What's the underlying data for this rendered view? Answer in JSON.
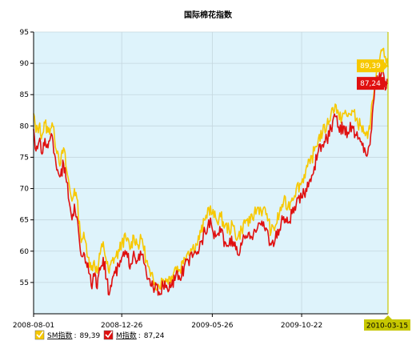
{
  "chart_data": {
    "type": "line",
    "title": "国际棉花指数",
    "ylim": [
      50,
      95
    ],
    "y_ticks": [
      55,
      60,
      65,
      70,
      75,
      80,
      85,
      90,
      95
    ],
    "x_range": [
      "2008-08-01",
      "2010-03-15"
    ],
    "x_ticks": [
      "2008-08-01",
      "2008-12-26",
      "2009-05-26",
      "2009-10-22"
    ],
    "cursor_date": "2010-03-15",
    "grid": true,
    "legend_position": "bottom-left",
    "series": [
      {
        "name": "SM指数",
        "color": "#f7c800",
        "last_value": "89,39",
        "points": [
          [
            "2008-08-01",
            82.0
          ],
          [
            "2008-08-05",
            79.0
          ],
          [
            "2008-08-10",
            80.0
          ],
          [
            "2008-08-15",
            78.5
          ],
          [
            "2008-08-20",
            80.5
          ],
          [
            "2008-08-25",
            79.0
          ],
          [
            "2008-09-01",
            80.5
          ],
          [
            "2008-09-05",
            78.0
          ],
          [
            "2008-09-10",
            76.0
          ],
          [
            "2008-09-15",
            74.0
          ],
          [
            "2008-09-20",
            76.5
          ],
          [
            "2008-09-25",
            73.0
          ],
          [
            "2008-10-01",
            69.5
          ],
          [
            "2008-10-04",
            68.0
          ],
          [
            "2008-10-08",
            70.0
          ],
          [
            "2008-10-12",
            68.5
          ],
          [
            "2008-10-18",
            62.5
          ],
          [
            "2008-10-25",
            62.0
          ],
          [
            "2008-11-01",
            59.0
          ],
          [
            "2008-11-05",
            57.0
          ],
          [
            "2008-11-10",
            58.5
          ],
          [
            "2008-11-15",
            56.5
          ],
          [
            "2008-11-20",
            59.5
          ],
          [
            "2008-11-25",
            61.5
          ],
          [
            "2008-12-01",
            58.0
          ],
          [
            "2008-12-05",
            56.5
          ],
          [
            "2008-12-10",
            58.5
          ],
          [
            "2008-12-15",
            59.0
          ],
          [
            "2008-12-22",
            60.0
          ],
          [
            "2008-12-26",
            61.5
          ],
          [
            "2009-01-02",
            62.0
          ],
          [
            "2009-01-10",
            60.5
          ],
          [
            "2009-01-15",
            62.5
          ],
          [
            "2009-01-22",
            61.0
          ],
          [
            "2009-01-29",
            62.0
          ],
          [
            "2009-02-05",
            58.5
          ],
          [
            "2009-02-12",
            56.0
          ],
          [
            "2009-02-19",
            55.0
          ],
          [
            "2009-02-26",
            54.5
          ],
          [
            "2009-03-05",
            55.5
          ],
          [
            "2009-03-12",
            55.5
          ],
          [
            "2009-03-19",
            56.0
          ],
          [
            "2009-03-26",
            57.5
          ],
          [
            "2009-04-02",
            57.0
          ],
          [
            "2009-04-09",
            59.0
          ],
          [
            "2009-04-16",
            60.0
          ],
          [
            "2009-04-23",
            60.5
          ],
          [
            "2009-04-30",
            61.0
          ],
          [
            "2009-05-07",
            63.0
          ],
          [
            "2009-05-14",
            65.0
          ],
          [
            "2009-05-20",
            67.0
          ],
          [
            "2009-05-26",
            66.0
          ],
          [
            "2009-06-02",
            65.0
          ],
          [
            "2009-06-09",
            65.5
          ],
          [
            "2009-06-16",
            64.0
          ],
          [
            "2009-06-23",
            63.5
          ],
          [
            "2009-06-30",
            64.0
          ],
          [
            "2009-07-07",
            62.0
          ],
          [
            "2009-07-14",
            63.5
          ],
          [
            "2009-07-21",
            65.0
          ],
          [
            "2009-07-28",
            64.5
          ],
          [
            "2009-08-04",
            66.0
          ],
          [
            "2009-08-11",
            67.0
          ],
          [
            "2009-08-18",
            66.5
          ],
          [
            "2009-08-25",
            66.0
          ],
          [
            "2009-09-01",
            63.0
          ],
          [
            "2009-09-08",
            64.0
          ],
          [
            "2009-09-15",
            66.0
          ],
          [
            "2009-09-22",
            68.0
          ],
          [
            "2009-09-29",
            67.0
          ],
          [
            "2009-10-06",
            68.5
          ],
          [
            "2009-10-13",
            70.0
          ],
          [
            "2009-10-22",
            71.0
          ],
          [
            "2009-10-29",
            73.0
          ],
          [
            "2009-11-05",
            74.0
          ],
          [
            "2009-11-12",
            76.0
          ],
          [
            "2009-11-19",
            78.0
          ],
          [
            "2009-11-26",
            79.0
          ],
          [
            "2009-12-03",
            80.0
          ],
          [
            "2009-12-10",
            82.0
          ],
          [
            "2009-12-17",
            83.5
          ],
          [
            "2009-12-24",
            81.0
          ],
          [
            "2009-12-31",
            82.0
          ],
          [
            "2010-01-07",
            81.5
          ],
          [
            "2010-01-14",
            82.5
          ],
          [
            "2010-01-21",
            81.0
          ],
          [
            "2010-01-28",
            80.0
          ],
          [
            "2010-02-04",
            79.0
          ],
          [
            "2010-02-09",
            78.0
          ],
          [
            "2010-02-13",
            79.5
          ],
          [
            "2010-02-17",
            84.0
          ],
          [
            "2010-02-21",
            87.0
          ],
          [
            "2010-02-25",
            89.0
          ],
          [
            "2010-03-01",
            90.5
          ],
          [
            "2010-03-05",
            92.0
          ],
          [
            "2010-03-09",
            91.0
          ],
          [
            "2010-03-12",
            90.0
          ],
          [
            "2010-03-15",
            89.39
          ]
        ]
      },
      {
        "name": "M指数",
        "color": "#e01010",
        "last_value": "87,24",
        "points": [
          [
            "2008-08-01",
            79.5
          ],
          [
            "2008-08-05",
            76.0
          ],
          [
            "2008-08-10",
            77.5
          ],
          [
            "2008-08-15",
            75.5
          ],
          [
            "2008-08-20",
            78.0
          ],
          [
            "2008-08-25",
            76.5
          ],
          [
            "2008-09-01",
            78.5
          ],
          [
            "2008-09-05",
            75.5
          ],
          [
            "2008-09-10",
            73.0
          ],
          [
            "2008-09-15",
            72.0
          ],
          [
            "2008-09-20",
            74.0
          ],
          [
            "2008-09-25",
            71.0
          ],
          [
            "2008-10-01",
            67.0
          ],
          [
            "2008-10-04",
            65.0
          ],
          [
            "2008-10-08",
            67.5
          ],
          [
            "2008-10-12",
            65.5
          ],
          [
            "2008-10-18",
            60.0
          ],
          [
            "2008-10-25",
            59.5
          ],
          [
            "2008-11-01",
            56.5
          ],
          [
            "2008-11-05",
            54.5
          ],
          [
            "2008-11-10",
            56.0
          ],
          [
            "2008-11-15",
            54.0
          ],
          [
            "2008-11-20",
            57.0
          ],
          [
            "2008-11-25",
            59.0
          ],
          [
            "2008-12-01",
            55.5
          ],
          [
            "2008-12-05",
            53.0
          ],
          [
            "2008-12-10",
            55.5
          ],
          [
            "2008-12-15",
            56.5
          ],
          [
            "2008-12-22",
            57.5
          ],
          [
            "2008-12-26",
            59.0
          ],
          [
            "2009-01-02",
            59.5
          ],
          [
            "2009-01-10",
            58.0
          ],
          [
            "2009-01-15",
            60.0
          ],
          [
            "2009-01-22",
            58.5
          ],
          [
            "2009-01-29",
            59.5
          ],
          [
            "2009-02-05",
            56.5
          ],
          [
            "2009-02-12",
            54.5
          ],
          [
            "2009-02-19",
            54.0
          ],
          [
            "2009-02-26",
            53.5
          ],
          [
            "2009-03-05",
            54.5
          ],
          [
            "2009-03-12",
            54.0
          ],
          [
            "2009-03-19",
            54.5
          ],
          [
            "2009-03-26",
            56.0
          ],
          [
            "2009-04-02",
            55.5
          ],
          [
            "2009-04-09",
            57.5
          ],
          [
            "2009-04-16",
            58.5
          ],
          [
            "2009-04-23",
            59.0
          ],
          [
            "2009-04-30",
            59.5
          ],
          [
            "2009-05-07",
            61.5
          ],
          [
            "2009-05-14",
            63.0
          ],
          [
            "2009-05-20",
            65.0
          ],
          [
            "2009-05-26",
            63.5
          ],
          [
            "2009-06-02",
            62.5
          ],
          [
            "2009-06-09",
            63.0
          ],
          [
            "2009-06-16",
            61.5
          ],
          [
            "2009-06-23",
            61.0
          ],
          [
            "2009-06-30",
            61.5
          ],
          [
            "2009-07-07",
            59.5
          ],
          [
            "2009-07-14",
            61.0
          ],
          [
            "2009-07-21",
            62.5
          ],
          [
            "2009-07-28",
            62.0
          ],
          [
            "2009-08-04",
            63.5
          ],
          [
            "2009-08-11",
            64.5
          ],
          [
            "2009-08-18",
            64.0
          ],
          [
            "2009-08-25",
            63.5
          ],
          [
            "2009-09-01",
            61.0
          ],
          [
            "2009-09-08",
            62.0
          ],
          [
            "2009-09-15",
            63.5
          ],
          [
            "2009-09-22",
            65.5
          ],
          [
            "2009-09-29",
            64.5
          ],
          [
            "2009-10-06",
            66.0
          ],
          [
            "2009-10-13",
            67.5
          ],
          [
            "2009-10-22",
            68.5
          ],
          [
            "2009-10-29",
            70.0
          ],
          [
            "2009-11-05",
            71.5
          ],
          [
            "2009-11-12",
            73.5
          ],
          [
            "2009-11-19",
            76.0
          ],
          [
            "2009-11-26",
            77.0
          ],
          [
            "2009-12-03",
            78.0
          ],
          [
            "2009-12-10",
            79.5
          ],
          [
            "2009-12-17",
            81.5
          ],
          [
            "2009-12-24",
            79.0
          ],
          [
            "2009-12-31",
            80.0
          ],
          [
            "2010-01-07",
            79.0
          ],
          [
            "2010-01-14",
            80.0
          ],
          [
            "2010-01-21",
            78.5
          ],
          [
            "2010-01-28",
            77.5
          ],
          [
            "2010-02-04",
            76.5
          ],
          [
            "2010-02-09",
            75.5
          ],
          [
            "2010-02-13",
            77.0
          ],
          [
            "2010-02-17",
            82.0
          ],
          [
            "2010-02-21",
            86.0
          ],
          [
            "2010-02-25",
            88.0
          ],
          [
            "2010-03-01",
            88.5
          ],
          [
            "2010-03-05",
            89.0
          ],
          [
            "2010-03-09",
            87.5
          ],
          [
            "2010-03-12",
            86.0
          ],
          [
            "2010-03-15",
            87.24
          ]
        ]
      }
    ],
    "legend_separator": ":"
  },
  "colors": {
    "plot_background": "#def3fb",
    "grid": "#c4d6de",
    "axis": "#000000",
    "cursor": "#c7c700",
    "cursor_tag": "#c7c700"
  }
}
